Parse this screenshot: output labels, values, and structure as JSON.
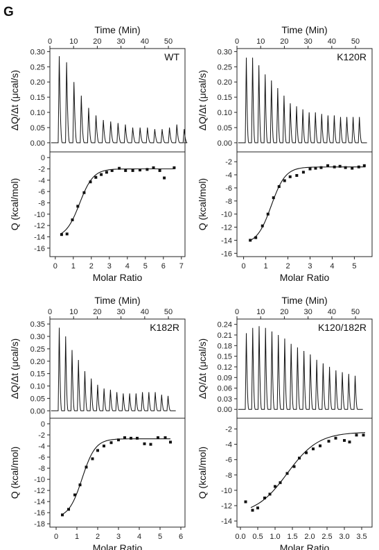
{
  "figure_label": "G",
  "chart_data": [
    {
      "type": "line",
      "name": "WT",
      "label": "WT",
      "top": {
        "xlabel": "Time (Min)",
        "xticks": [
          0,
          10,
          20,
          30,
          40,
          50
        ],
        "xlim": [
          0,
          57
        ],
        "ylabel": "ΔQ/Δt (μcal/s)",
        "yticks": [
          0.0,
          0.05,
          0.1,
          0.15,
          0.2,
          0.25,
          0.3
        ],
        "ylim": [
          -0.03,
          0.31
        ],
        "injection_start": 3.5,
        "injection_interval": 3.1,
        "peak_heights": [
          0.285,
          0.265,
          0.2,
          0.155,
          0.115,
          0.09,
          0.075,
          0.07,
          0.065,
          0.06,
          0.05,
          0.05,
          0.05,
          0.045,
          0.045,
          0.05,
          0.06,
          0.045
        ]
      },
      "bottom": {
        "xlabel": "Molar Ratio",
        "xticks": [
          0,
          1,
          2,
          3,
          4,
          5,
          6,
          7
        ],
        "xlim": [
          -0.3,
          7.2
        ],
        "ylabel": "Q (kcal/mol)",
        "yticks": [
          0,
          -2,
          -4,
          -6,
          -8,
          -10,
          -12,
          -14,
          -16
        ],
        "ylim": [
          -17.5,
          1.0
        ],
        "points": [
          [
            0.35,
            -13.6
          ],
          [
            0.65,
            -13.5
          ],
          [
            0.95,
            -11.0
          ],
          [
            1.25,
            -8.6
          ],
          [
            1.6,
            -6.2
          ],
          [
            1.95,
            -4.3
          ],
          [
            2.25,
            -3.5
          ],
          [
            2.55,
            -3.0
          ],
          [
            2.85,
            -2.6
          ],
          [
            3.15,
            -2.3
          ],
          [
            3.55,
            -1.9
          ],
          [
            3.9,
            -2.3
          ],
          [
            4.3,
            -2.3
          ],
          [
            4.7,
            -2.2
          ],
          [
            5.1,
            -2.1
          ],
          [
            5.45,
            -1.8
          ],
          [
            5.8,
            -2.3
          ],
          [
            6.05,
            -3.6
          ],
          [
            6.6,
            -1.8
          ]
        ],
        "fit": {
          "top": -2.0,
          "bottom": -14.2,
          "mid": 1.35,
          "width": 0.38,
          "xmin": 0.3,
          "xmax": 6.6
        }
      }
    },
    {
      "type": "line",
      "name": "K120R",
      "label": "K120R",
      "top": {
        "xlabel": "Time (Min)",
        "xticks": [
          0,
          10,
          20,
          30,
          40,
          50
        ],
        "xlim": [
          0,
          57
        ],
        "ylabel": "ΔQ/Δt (μcal/s)",
        "yticks": [
          0.0,
          0.05,
          0.1,
          0.15,
          0.2,
          0.25,
          0.3
        ],
        "ylim": [
          -0.03,
          0.31
        ],
        "injection_start": 3.5,
        "injection_interval": 2.65,
        "peak_heights": [
          0.28,
          0.28,
          0.255,
          0.225,
          0.205,
          0.18,
          0.155,
          0.13,
          0.12,
          0.11,
          0.1,
          0.1,
          0.095,
          0.09,
          0.09,
          0.085,
          0.085,
          0.085,
          0.085
        ]
      },
      "bottom": {
        "xlabel": "Molar Ratio",
        "xticks": [
          0,
          1,
          2,
          3,
          4,
          5
        ],
        "xlim": [
          -0.3,
          5.8
        ],
        "ylabel": "Q (kcal/mol)",
        "yticks": [
          -2,
          -4,
          -6,
          -8,
          -10,
          -12,
          -14,
          -16
        ],
        "ylim": [
          -16.5,
          -0.5
        ],
        "points": [
          [
            0.3,
            -14.0
          ],
          [
            0.55,
            -13.6
          ],
          [
            0.85,
            -11.8
          ],
          [
            1.1,
            -10.0
          ],
          [
            1.35,
            -7.5
          ],
          [
            1.6,
            -5.8
          ],
          [
            1.85,
            -4.9
          ],
          [
            2.1,
            -4.3
          ],
          [
            2.4,
            -4.1
          ],
          [
            2.7,
            -3.6
          ],
          [
            3.0,
            -3.1
          ],
          [
            3.25,
            -3.0
          ],
          [
            3.5,
            -2.9
          ],
          [
            3.8,
            -2.6
          ],
          [
            4.1,
            -2.8
          ],
          [
            4.35,
            -2.7
          ],
          [
            4.6,
            -2.9
          ],
          [
            4.9,
            -3.0
          ],
          [
            5.2,
            -2.8
          ],
          [
            5.45,
            -2.6
          ]
        ],
        "fit": {
          "top": -2.8,
          "bottom": -14.6,
          "mid": 1.25,
          "width": 0.32,
          "xmin": 0.25,
          "xmax": 5.5
        }
      }
    },
    {
      "type": "line",
      "name": "K182R",
      "label": "K182R",
      "top": {
        "xlabel": "Time (Min)",
        "xticks": [
          0,
          10,
          20,
          30,
          40,
          50
        ],
        "xlim": [
          0,
          57
        ],
        "ylabel": "ΔQ/Δt (μcal/s)",
        "yticks": [
          0.0,
          0.05,
          0.1,
          0.15,
          0.2,
          0.25,
          0.3,
          0.35
        ],
        "ylim": [
          -0.03,
          0.37
        ],
        "injection_start": 3.5,
        "injection_interval": 2.7,
        "peak_heights": [
          0.335,
          0.3,
          0.245,
          0.205,
          0.16,
          0.13,
          0.105,
          0.09,
          0.085,
          0.075,
          0.07,
          0.07,
          0.07,
          0.075,
          0.075,
          0.075,
          0.065,
          0.06
        ]
      },
      "bottom": {
        "xlabel": "Molar Ratio",
        "xticks": [
          0,
          1,
          2,
          3,
          4,
          5,
          6
        ],
        "xlim": [
          -0.3,
          6.2
        ],
        "ylabel": "Q (kcal/mol)",
        "yticks": [
          0,
          -2,
          -4,
          -6,
          -8,
          -10,
          -12,
          -14,
          -16,
          -18
        ],
        "ylim": [
          -18.6,
          1.0
        ],
        "points": [
          [
            0.3,
            -16.4
          ],
          [
            0.6,
            -15.4
          ],
          [
            0.9,
            -12.8
          ],
          [
            1.15,
            -11.0
          ],
          [
            1.45,
            -7.8
          ],
          [
            1.75,
            -6.3
          ],
          [
            2.0,
            -4.8
          ],
          [
            2.3,
            -4.0
          ],
          [
            2.65,
            -3.4
          ],
          [
            3.0,
            -2.9
          ],
          [
            3.3,
            -2.5
          ],
          [
            3.6,
            -2.6
          ],
          [
            3.9,
            -2.6
          ],
          [
            4.25,
            -3.6
          ],
          [
            4.55,
            -3.7
          ],
          [
            4.9,
            -2.5
          ],
          [
            5.25,
            -2.5
          ],
          [
            5.5,
            -3.3
          ]
        ],
        "fit": {
          "top": -2.7,
          "bottom": -17.0,
          "mid": 1.25,
          "width": 0.32,
          "xmin": 0.25,
          "xmax": 5.5
        }
      }
    },
    {
      "type": "line",
      "name": "K120/182R",
      "label": "K120/182R",
      "top": {
        "xlabel": "Time (Min)",
        "xticks": [
          0,
          10,
          20,
          30,
          40,
          50
        ],
        "xlim": [
          0,
          57
        ],
        "ylabel": "ΔQ/Δt (μcal/s)",
        "yticks": [
          0.0,
          0.03,
          0.06,
          0.09,
          0.12,
          0.15,
          0.18,
          0.21,
          0.24
        ],
        "ylim": [
          -0.025,
          0.255
        ],
        "injection_start": 3.5,
        "injection_interval": 2.7,
        "peak_heights": [
          0.215,
          0.23,
          0.235,
          0.23,
          0.22,
          0.21,
          0.2,
          0.185,
          0.175,
          0.165,
          0.155,
          0.14,
          0.13,
          0.12,
          0.11,
          0.105,
          0.1,
          0.095
        ]
      },
      "bottom": {
        "xlabel": "Molar Ratio",
        "xticks": [
          0.0,
          0.5,
          1.0,
          1.5,
          2.0,
          2.5,
          3.0,
          3.5
        ],
        "xlim": [
          -0.1,
          3.8
        ],
        "ylabel": "Q (kcal/mol)",
        "yticks": [
          -2,
          -4,
          -6,
          -8,
          -10,
          -12,
          -14
        ],
        "ylim": [
          -14.8,
          -0.6
        ],
        "points": [
          [
            0.15,
            -11.5
          ],
          [
            0.35,
            -12.6
          ],
          [
            0.5,
            -12.3
          ],
          [
            0.7,
            -11.0
          ],
          [
            0.85,
            -10.5
          ],
          [
            1.0,
            -9.5
          ],
          [
            1.15,
            -9.0
          ],
          [
            1.35,
            -7.8
          ],
          [
            1.55,
            -6.9
          ],
          [
            1.7,
            -5.8
          ],
          [
            1.9,
            -5.1
          ],
          [
            2.1,
            -4.6
          ],
          [
            2.3,
            -4.2
          ],
          [
            2.55,
            -3.6
          ],
          [
            2.75,
            -3.2
          ],
          [
            3.0,
            -3.5
          ],
          [
            3.15,
            -3.7
          ],
          [
            3.35,
            -2.8
          ],
          [
            3.55,
            -2.8
          ]
        ],
        "fit": {
          "top": -2.4,
          "bottom": -13.2,
          "mid": 1.35,
          "width": 0.45,
          "xmin": 0.3,
          "xmax": 3.6
        }
      }
    }
  ]
}
